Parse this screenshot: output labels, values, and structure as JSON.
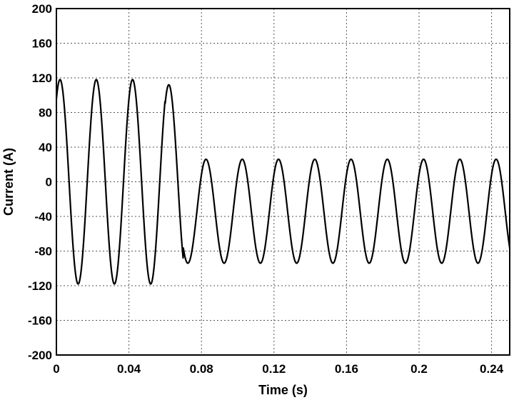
{
  "chart_data": {
    "type": "line",
    "title": "",
    "xlabel": "Time (s)",
    "ylabel": "Current (A)",
    "xlim": [
      0,
      0.25
    ],
    "ylim": [
      -200,
      200
    ],
    "x_ticks": [
      0,
      0.04,
      0.08,
      0.12,
      0.16,
      0.2,
      0.24
    ],
    "x_tick_labels": [
      "0",
      "0.04",
      "0.08",
      "0.12",
      "0.16",
      "0.2",
      "0.24"
    ],
    "y_ticks": [
      -200,
      -160,
      -120,
      -80,
      -40,
      0,
      40,
      80,
      120,
      160,
      200
    ],
    "y_tick_labels": [
      "-200",
      "-160",
      "-120",
      "-80",
      "-40",
      "0",
      "40",
      "80",
      "120",
      "160",
      "200"
    ],
    "grid": true,
    "grid_style": "dotted",
    "legend": "none",
    "series": [
      {
        "color": "#000000",
        "segments": [
          {
            "t_start": 0,
            "t_end": 0.06,
            "offset": 0,
            "amplitude": 118,
            "frequency_hz": 50,
            "peak_time": 0.002
          },
          {
            "t_start": 0.06,
            "t_end": 0.07,
            "offset": 0,
            "amplitude": 112,
            "frequency_hz": 50,
            "peak_time": 0.062
          },
          {
            "t_start": 0.07,
            "t_end": 0.25,
            "offset": -34,
            "amplitude": 60,
            "frequency_hz": 50,
            "peak_time": 0.0825
          }
        ],
        "notable_points": [
          {
            "x": 0.002,
            "y": 118
          },
          {
            "x": 0.012,
            "y": -118
          },
          {
            "x": 0.022,
            "y": 118
          },
          {
            "x": 0.032,
            "y": -118
          },
          {
            "x": 0.042,
            "y": 118
          },
          {
            "x": 0.052,
            "y": -118
          },
          {
            "x": 0.062,
            "y": 112
          },
          {
            "x": 0.0725,
            "y": -94
          },
          {
            "x": 0.0825,
            "y": 26
          },
          {
            "x": 0.0925,
            "y": -94
          },
          {
            "x": 0.1025,
            "y": 26
          },
          {
            "x": 0.1125,
            "y": -94
          },
          {
            "x": 0.1225,
            "y": 26
          },
          {
            "x": 0.1425,
            "y": 26
          },
          {
            "x": 0.1625,
            "y": 26
          },
          {
            "x": 0.1825,
            "y": 26
          },
          {
            "x": 0.2025,
            "y": 26
          },
          {
            "x": 0.2225,
            "y": 26
          },
          {
            "x": 0.2425,
            "y": 26
          },
          {
            "x": 0.25,
            "y": -80
          }
        ]
      }
    ]
  }
}
